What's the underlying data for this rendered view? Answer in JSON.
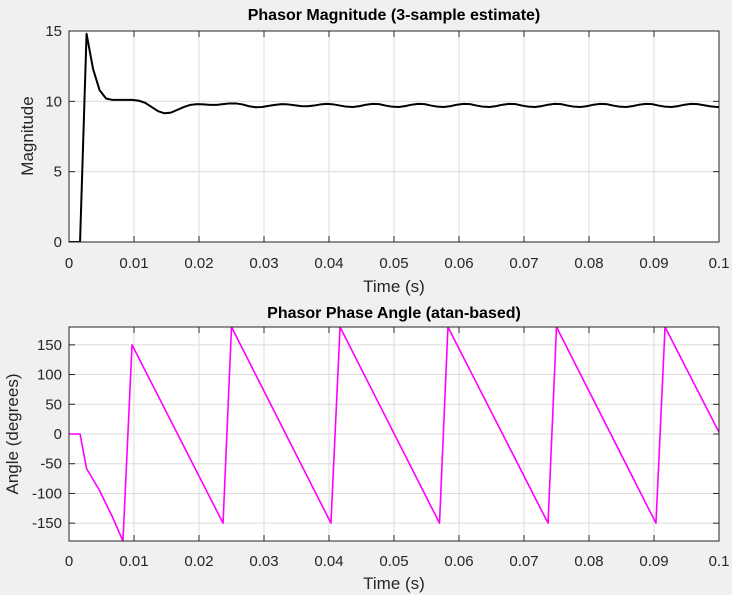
{
  "chart_data": [
    {
      "type": "line",
      "title": "Phasor Magnitude (3-sample estimate)",
      "xlabel": "Time (s)",
      "ylabel": "Magnitude",
      "xlim": [
        0,
        0.1
      ],
      "ylim": [
        0,
        15
      ],
      "xticks": [
        0,
        0.01,
        0.02,
        0.03,
        0.04,
        0.05,
        0.06,
        0.07,
        0.08,
        0.09,
        0.1
      ],
      "xtick_labels": [
        "0",
        "0.01",
        "0.02",
        "0.03",
        "0.04",
        "0.05",
        "0.06",
        "0.07",
        "0.08",
        "0.09",
        "0.1"
      ],
      "yticks": [
        0,
        5,
        10,
        15
      ],
      "ytick_labels": [
        "0",
        "5",
        "10",
        "15"
      ],
      "grid": true,
      "color": "#000000",
      "series": [
        {
          "x": [
            0,
            0.0017,
            0.0027,
            0.0037,
            0.0047,
            0.0057,
            0.0067,
            0.0077,
            0.0087,
            0.0097,
            0.0107,
            0.0117,
            0.0127,
            0.0137,
            0.0147,
            0.0157,
            0.0167,
            0.0177,
            0.0187,
            0.0197,
            0.0207,
            0.0217,
            0.0227,
            0.0237,
            0.0247,
            0.0257,
            0.0267,
            0.0277,
            0.0287,
            0.0297,
            0.0307,
            0.0317,
            0.0327,
            0.0337,
            0.0347,
            0.0357,
            0.0367,
            0.0377,
            0.0387,
            0.0397,
            0.0407,
            0.0417,
            0.0427,
            0.0437,
            0.0447,
            0.0457,
            0.0467,
            0.0477,
            0.0487,
            0.0497,
            0.0507,
            0.0517,
            0.0527,
            0.0537,
            0.0547,
            0.0557,
            0.0567,
            0.0577,
            0.0587,
            0.0597,
            0.0607,
            0.0617,
            0.0627,
            0.0637,
            0.0647,
            0.0657,
            0.0667,
            0.0677,
            0.0687,
            0.0697,
            0.0707,
            0.0717,
            0.0727,
            0.0737,
            0.0747,
            0.0757,
            0.0767,
            0.0777,
            0.0787,
            0.0797,
            0.0807,
            0.0817,
            0.0827,
            0.0837,
            0.0847,
            0.0857,
            0.0867,
            0.0877,
            0.0887,
            0.0897,
            0.0907,
            0.0917,
            0.0927,
            0.0937,
            0.0947,
            0.0957,
            0.0967,
            0.0977,
            0.0987,
            0.0997,
            0.1
          ],
          "y": [
            0,
            0,
            14.8,
            12.3,
            10.8,
            10.2,
            10.1,
            10.1,
            10.1,
            10.1,
            10.05,
            9.9,
            9.6,
            9.3,
            9.15,
            9.2,
            9.4,
            9.6,
            9.75,
            9.8,
            9.78,
            9.75,
            9.75,
            9.8,
            9.85,
            9.85,
            9.78,
            9.65,
            9.58,
            9.6,
            9.68,
            9.75,
            9.8,
            9.78,
            9.72,
            9.66,
            9.65,
            9.7,
            9.78,
            9.82,
            9.78,
            9.7,
            9.62,
            9.6,
            9.66,
            9.76,
            9.82,
            9.8,
            9.7,
            9.62,
            9.6,
            9.66,
            9.76,
            9.82,
            9.8,
            9.7,
            9.62,
            9.6,
            9.66,
            9.76,
            9.82,
            9.8,
            9.7,
            9.62,
            9.6,
            9.66,
            9.76,
            9.82,
            9.8,
            9.7,
            9.62,
            9.6,
            9.66,
            9.76,
            9.82,
            9.8,
            9.7,
            9.62,
            9.6,
            9.66,
            9.76,
            9.82,
            9.8,
            9.7,
            9.62,
            9.6,
            9.66,
            9.76,
            9.82,
            9.8,
            9.7,
            9.62,
            9.6,
            9.66,
            9.76,
            9.82,
            9.8,
            9.72,
            9.64,
            9.6,
            9.6
          ]
        }
      ]
    },
    {
      "type": "line",
      "title": "Phasor Phase Angle (atan-based)",
      "xlabel": "Time (s)",
      "ylabel": "Angle (degrees)",
      "xlim": [
        0,
        0.1
      ],
      "ylim": [
        -180,
        180
      ],
      "xticks": [
        0,
        0.01,
        0.02,
        0.03,
        0.04,
        0.05,
        0.06,
        0.07,
        0.08,
        0.09,
        0.1
      ],
      "xtick_labels": [
        "0",
        "0.01",
        "0.02",
        "0.03",
        "0.04",
        "0.05",
        "0.06",
        "0.07",
        "0.08",
        "0.09",
        "0.1"
      ],
      "yticks": [
        -150,
        -100,
        -50,
        0,
        50,
        100,
        150
      ],
      "ytick_labels": [
        "-150",
        "-100",
        "-50",
        "0",
        "50",
        "100",
        "150"
      ],
      "grid": true,
      "color": "#ff00ff",
      "series": [
        {
          "x": [
            0,
            0.0017,
            0.0027,
            0.0047,
            0.0067,
            0.0083,
            0.0097,
            0.0237,
            0.025,
            0.0403,
            0.0417,
            0.057,
            0.0583,
            0.0737,
            0.075,
            0.0903,
            0.0917,
            0.1
          ],
          "y": [
            0,
            0,
            -58,
            -95,
            -140,
            -180,
            150,
            -150,
            180,
            -150,
            180,
            -150,
            180,
            -150,
            180,
            -150,
            180,
            3
          ]
        }
      ]
    }
  ]
}
